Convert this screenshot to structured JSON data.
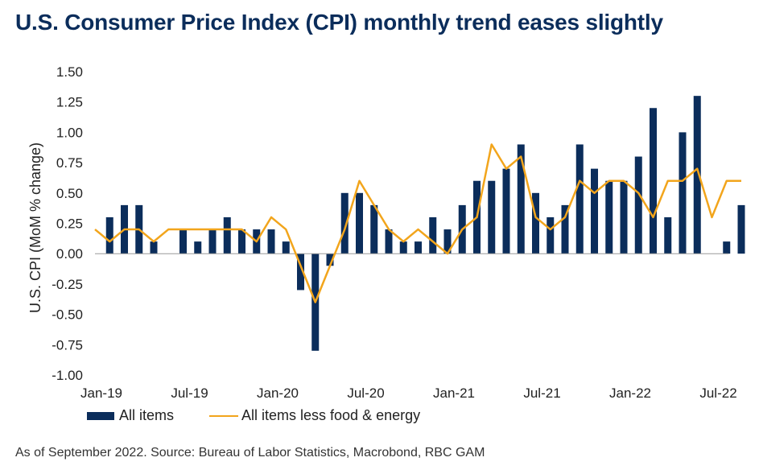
{
  "title": "U.S. Consumer Price Index (CPI) monthly trend eases slightly",
  "source": "As of September 2022. Source: Bureau of Labor Statistics, Macrobond, RBC GAM",
  "colors": {
    "bar": "#0b2d5b",
    "line": "#f2a51c",
    "title": "#0b2d5b",
    "axis": "#999999"
  },
  "chart_data": {
    "type": "bar",
    "ylabel": "U.S. CPI (MoM % change)",
    "ylim": [
      -1.0,
      1.5
    ],
    "yticks": [
      "1.50",
      "1.25",
      "1.00",
      "0.75",
      "0.50",
      "0.25",
      "0.00",
      "-0.25",
      "-0.50",
      "-0.75",
      "-1.00"
    ],
    "ytick_values": [
      1.5,
      1.25,
      1.0,
      0.75,
      0.5,
      0.25,
      0.0,
      -0.25,
      -0.5,
      -0.75,
      -1.0
    ],
    "xtick_labels": [
      "Jan-19",
      "Jul-19",
      "Jan-20",
      "Jul-20",
      "Jan-21",
      "Jul-21",
      "Jan-22",
      "Jul-22"
    ],
    "xtick_months": [
      "2019-01",
      "2019-07",
      "2020-01",
      "2020-07",
      "2021-01",
      "2021-07",
      "2022-01",
      "2022-07"
    ],
    "grid": false,
    "legend_position": "bottom-left",
    "months": [
      "2019-01",
      "2019-02",
      "2019-03",
      "2019-04",
      "2019-05",
      "2019-06",
      "2019-07",
      "2019-08",
      "2019-09",
      "2019-10",
      "2019-11",
      "2019-12",
      "2020-01",
      "2020-02",
      "2020-03",
      "2020-04",
      "2020-05",
      "2020-06",
      "2020-07",
      "2020-08",
      "2020-09",
      "2020-10",
      "2020-11",
      "2020-12",
      "2021-01",
      "2021-02",
      "2021-03",
      "2021-04",
      "2021-05",
      "2021-06",
      "2021-07",
      "2021-08",
      "2021-09",
      "2021-10",
      "2021-11",
      "2021-12",
      "2022-01",
      "2022-02",
      "2022-03",
      "2022-04",
      "2022-05",
      "2022-06",
      "2022-07",
      "2022-08",
      "2022-09"
    ],
    "series": [
      {
        "name": "All items",
        "type": "bar",
        "values": [
          0.0,
          0.3,
          0.4,
          0.4,
          0.1,
          0.0,
          0.2,
          0.1,
          0.2,
          0.3,
          0.2,
          0.2,
          0.2,
          0.1,
          -0.3,
          -0.8,
          -0.1,
          0.5,
          0.5,
          0.4,
          0.2,
          0.1,
          0.1,
          0.3,
          0.2,
          0.4,
          0.6,
          0.6,
          0.7,
          0.9,
          0.5,
          0.3,
          0.4,
          0.9,
          0.7,
          0.6,
          0.6,
          0.8,
          1.2,
          0.3,
          1.0,
          1.3,
          0.0,
          0.1,
          0.4
        ]
      },
      {
        "name": "All items less food & energy",
        "type": "line",
        "values": [
          0.2,
          0.1,
          0.2,
          0.2,
          0.1,
          0.2,
          0.2,
          0.2,
          0.2,
          0.2,
          0.2,
          0.1,
          0.3,
          0.2,
          -0.1,
          -0.4,
          -0.1,
          0.2,
          0.6,
          0.4,
          0.2,
          0.1,
          0.2,
          0.1,
          0.0,
          0.2,
          0.3,
          0.9,
          0.7,
          0.8,
          0.3,
          0.2,
          0.3,
          0.6,
          0.5,
          0.6,
          0.6,
          0.5,
          0.3,
          0.6,
          0.6,
          0.7,
          0.3,
          0.6,
          0.6
        ]
      }
    ]
  }
}
